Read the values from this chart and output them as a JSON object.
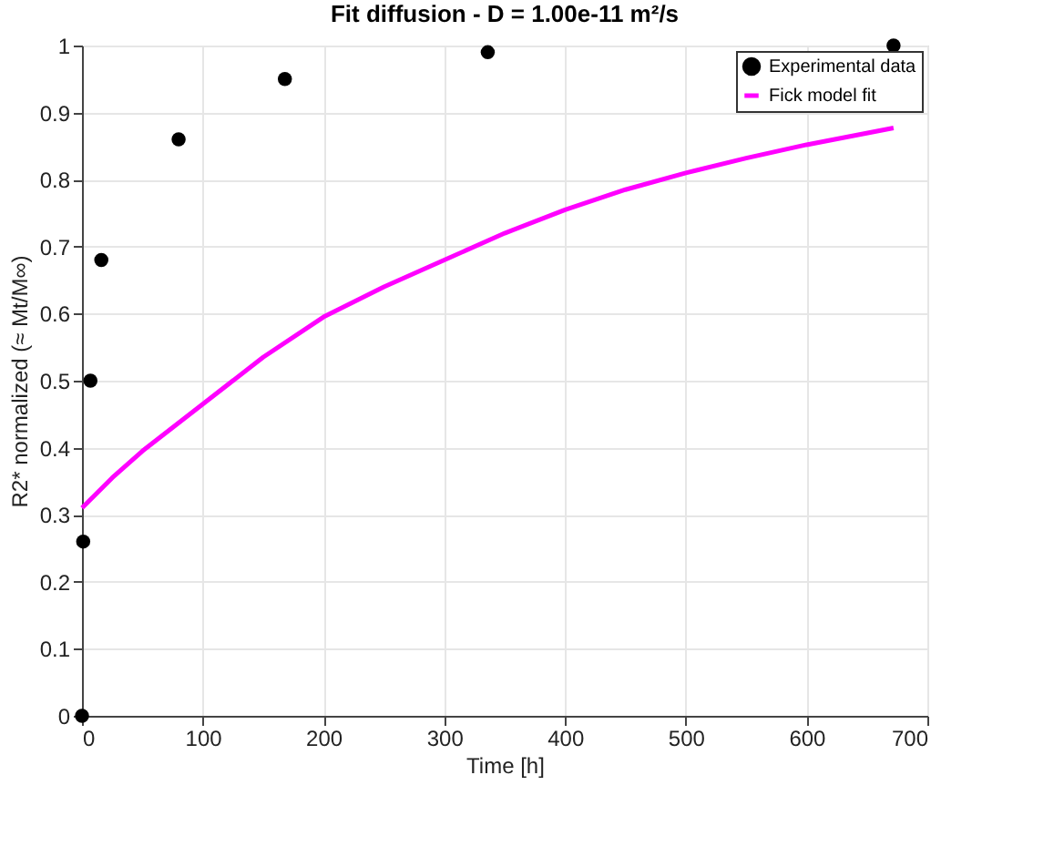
{
  "chart_data": {
    "type": "scatter",
    "title": "Fit diffusion - D = 1.00e-11 m²/s",
    "xlabel": "Time [h]",
    "ylabel": "R2* normalized (≈ Mt/M∞)",
    "series": [
      {
        "name": "Experimental data",
        "color": "#000000",
        "marker": "circle",
        "x": [
          0,
          1,
          7,
          16,
          80,
          168,
          336,
          672
        ],
        "values": [
          0,
          0.26,
          0.5,
          0.68,
          0.86,
          0.95,
          0.99,
          1.0
        ]
      },
      {
        "name": "Fick model fit",
        "type": "line",
        "color": "#ff00ff",
        "marker": "none",
        "line_style": "solid",
        "x": [
          0,
          25,
          50,
          100,
          150,
          200,
          250,
          300,
          350,
          400,
          450,
          500,
          550,
          600,
          672
        ],
        "values": [
          0.31,
          0.355,
          0.395,
          0.465,
          0.535,
          0.595,
          0.64,
          0.68,
          0.72,
          0.755,
          0.785,
          0.81,
          0.832,
          0.852,
          0.877
        ]
      }
    ],
    "xlim": [
      0,
      700
    ],
    "xticks": [
      0,
      100,
      200,
      300,
      400,
      500,
      600,
      700
    ],
    "ylim": [
      0,
      1
    ],
    "yticks": [
      0,
      0.1,
      0.2,
      0.3,
      0.4,
      0.5,
      0.6,
      0.7,
      0.8,
      0.9,
      1
    ],
    "grid": true,
    "legend": "top right"
  }
}
